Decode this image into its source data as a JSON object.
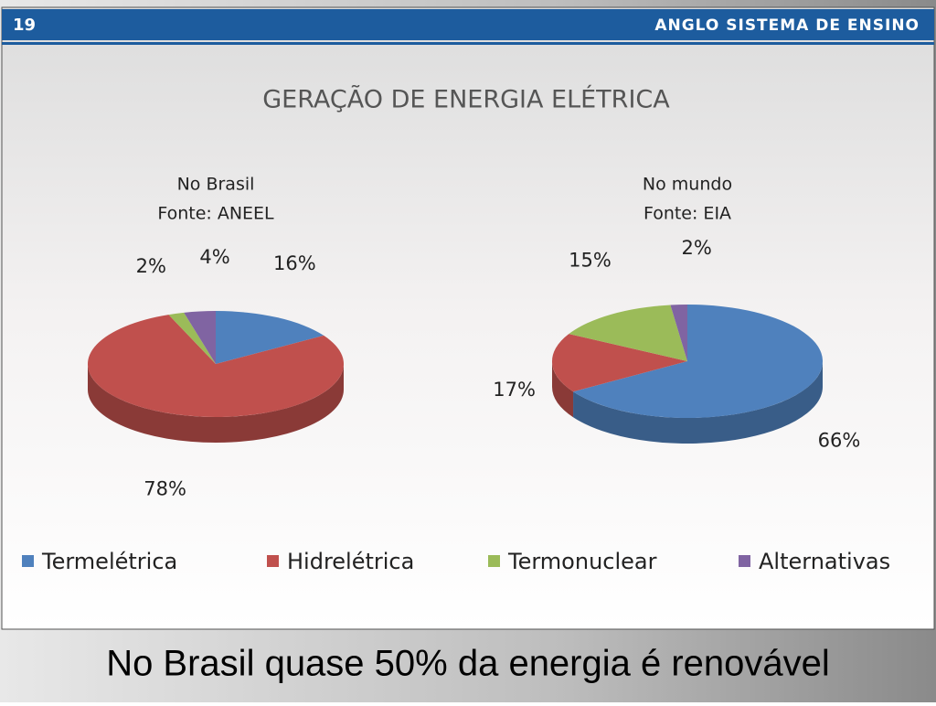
{
  "slide_number": "19",
  "brand": "ANGLO SISTEMA DE ENSINO",
  "title": "GERAÇÃO DE ENERGIA ELÉTRICA",
  "caption": "No Brasil quase 50% da energia é renovável",
  "chart_data": [
    {
      "type": "pie",
      "title": "No Brasil",
      "subtitle": "Fonte: ANEEL",
      "categories": [
        "Termelétrica",
        "Hidrelétrica",
        "Termonuclear",
        "Alternativas"
      ],
      "values": [
        16,
        78,
        2,
        4
      ],
      "value_labels": [
        "16%",
        "78%",
        "2%",
        "4%"
      ],
      "colors": [
        "#4f81bd",
        "#c0504d",
        "#9bbb59",
        "#8064a2"
      ],
      "legend": "bottom"
    },
    {
      "type": "pie",
      "title": "No mundo",
      "subtitle": "Fonte: EIA",
      "categories": [
        "Termelétrica",
        "Hidrelétrica",
        "Termonuclear",
        "Alternativas"
      ],
      "values": [
        66,
        17,
        15,
        2
      ],
      "value_labels": [
        "66%",
        "17%",
        "15%",
        "2%"
      ],
      "colors": [
        "#4f81bd",
        "#c0504d",
        "#9bbb59",
        "#8064a2"
      ]
    }
  ]
}
